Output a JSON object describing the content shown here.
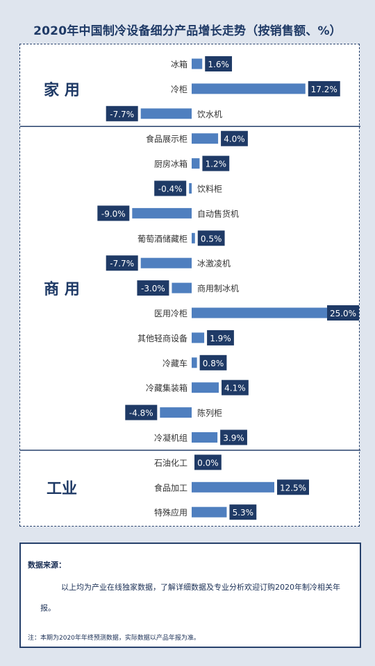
{
  "title": "2020年中国制冷设备细分产品增长走势（按销售额、%）",
  "chart_data": {
    "type": "bar",
    "orientation": "horizontal",
    "unit": "%",
    "groups": [
      {
        "name": "家 用",
        "items": [
          {
            "label": "冰箱",
            "value": 1.6,
            "value_label": "1.6%"
          },
          {
            "label": "冷柜",
            "value": 17.2,
            "value_label": "17.2%"
          },
          {
            "label": "饮水机",
            "value": -7.7,
            "value_label": "-7.7%"
          }
        ]
      },
      {
        "name": "商 用",
        "items": [
          {
            "label": "食品展示柜",
            "value": 4.0,
            "value_label": "4.0%"
          },
          {
            "label": "厨房冰箱",
            "value": 1.2,
            "value_label": "1.2%"
          },
          {
            "label": "饮料柜",
            "value": -0.4,
            "value_label": "-0.4%"
          },
          {
            "label": "自动售货机",
            "value": -9.0,
            "value_label": "-9.0%"
          },
          {
            "label": "葡萄酒储藏柜",
            "value": 0.5,
            "value_label": "0.5%"
          },
          {
            "label": "冰激凌机",
            "value": -7.7,
            "value_label": "-7.7%"
          },
          {
            "label": "商用制冰机",
            "value": -3.0,
            "value_label": "-3.0%"
          },
          {
            "label": "医用冷柜",
            "value": 25.0,
            "value_label": "25.0%"
          },
          {
            "label": "其他轻商设备",
            "value": 1.9,
            "value_label": "1.9%"
          },
          {
            "label": "冷藏车",
            "value": 0.8,
            "value_label": "0.8%"
          },
          {
            "label": "冷藏集装箱",
            "value": 4.1,
            "value_label": "4.1%"
          },
          {
            "label": "陈列柜",
            "value": -4.8,
            "value_label": "-4.8%"
          },
          {
            "label": "冷凝机组",
            "value": 3.9,
            "value_label": "3.9%"
          }
        ]
      },
      {
        "name": "工业",
        "items": [
          {
            "label": "石油化工",
            "value": 0.0,
            "value_label": "0.0%"
          },
          {
            "label": "食品加工",
            "value": 12.5,
            "value_label": "12.5%"
          },
          {
            "label": "特殊应用",
            "value": 5.3,
            "value_label": "5.3%"
          }
        ]
      }
    ],
    "colors": {
      "bar": "#4f7fbf",
      "label_bg": "#1f3a66",
      "label_text": "#ffffff",
      "text": "#333333",
      "group_text": "#1f3a66",
      "divider": "#26406b"
    }
  },
  "source": {
    "title": "数据来源：",
    "text": "以上均为产业在线独家数据，了解详细数据及专业分析欢迎订购2020年制冷相关年报。",
    "note": "注：本期为2020年年终预测数据，实际数据以产品年报为准。"
  }
}
